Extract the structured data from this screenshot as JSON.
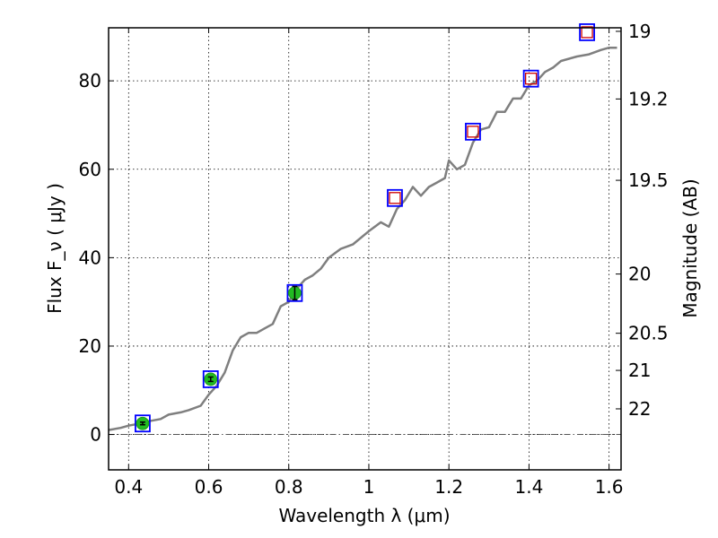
{
  "chart_data": {
    "type": "line",
    "xlabel": "Wavelength  λ (μm)",
    "ylabel": "Flux  F_ν  ( μJy )",
    "ylabel_right": "Magnitude (AB)",
    "xlim": [
      0.35,
      1.63
    ],
    "ylim": [
      -8,
      92
    ],
    "x_ticks": [
      0.4,
      0.6,
      0.8,
      1.0,
      1.2,
      1.4,
      1.6
    ],
    "x_tick_labels": [
      "0.4",
      "0.6",
      "0.8",
      "1",
      "1.2",
      "1.4",
      "1.6"
    ],
    "y_ticks": [
      0,
      20,
      40,
      60,
      80
    ],
    "y_tick_labels": [
      "0",
      "20",
      "40",
      "60",
      "80"
    ],
    "right_ticks": [
      {
        "label": "19",
        "flux": 91.2
      },
      {
        "label": "19.2",
        "flux": 75.9
      },
      {
        "label": "19.5",
        "flux": 57.5
      },
      {
        "label": "20",
        "flux": 36.3
      },
      {
        "label": "20.5",
        "flux": 22.9
      },
      {
        "label": "21",
        "flux": 14.5
      },
      {
        "label": "22",
        "flux": 5.8
      }
    ],
    "grid": true,
    "zero_line": true,
    "series": [
      {
        "style": "line",
        "color": "#7f7f7f",
        "x": [
          0.35,
          0.38,
          0.4,
          0.43,
          0.45,
          0.48,
          0.5,
          0.53,
          0.55,
          0.58,
          0.6,
          0.62,
          0.64,
          0.66,
          0.68,
          0.7,
          0.72,
          0.74,
          0.76,
          0.78,
          0.8,
          0.82,
          0.84,
          0.86,
          0.88,
          0.9,
          0.93,
          0.96,
          1.0,
          1.03,
          1.05,
          1.07,
          1.09,
          1.11,
          1.13,
          1.15,
          1.17,
          1.19,
          1.2,
          1.22,
          1.24,
          1.26,
          1.28,
          1.3,
          1.32,
          1.34,
          1.36,
          1.38,
          1.4,
          1.42,
          1.44,
          1.46,
          1.48,
          1.5,
          1.52,
          1.55,
          1.58,
          1.6,
          1.62
        ],
        "values": [
          1.0,
          1.5,
          2.0,
          2.5,
          3.0,
          3.5,
          4.5,
          5.0,
          5.5,
          6.5,
          9.0,
          11.0,
          14.0,
          19.0,
          22.0,
          23.0,
          23.0,
          24.0,
          25.0,
          29.0,
          30.0,
          33.0,
          35.0,
          36.0,
          37.5,
          40.0,
          42.0,
          43.0,
          46.0,
          48.0,
          47.0,
          51.0,
          53.0,
          56.0,
          54.0,
          56.0,
          57.0,
          58.0,
          62.0,
          60.0,
          61.0,
          66.0,
          69.0,
          69.5,
          73.0,
          73.0,
          76.0,
          76.0,
          79.0,
          80.0,
          82.0,
          83.0,
          84.5,
          85.0,
          85.5,
          86.0,
          87.0,
          87.5,
          87.5
        ]
      },
      {
        "style": "open-square",
        "color": "#0000ff",
        "x": [
          0.435,
          0.605,
          0.815,
          1.065,
          1.26,
          1.405,
          1.545
        ],
        "values": [
          2.5,
          12.5,
          32.0,
          53.5,
          68.5,
          80.5,
          91.0
        ]
      },
      {
        "style": "open-square-small",
        "color": "#cc0000",
        "x": [
          1.065,
          1.26,
          1.405,
          1.545
        ],
        "values": [
          53.5,
          68.5,
          80.5,
          91.0
        ]
      },
      {
        "style": "filled-circle-errorbar",
        "color": "#22bb22",
        "x": [
          0.435,
          0.605,
          0.815
        ],
        "values": [
          2.5,
          12.5,
          32.0
        ],
        "yerr": [
          0.3,
          0.5,
          1.5
        ]
      }
    ]
  }
}
